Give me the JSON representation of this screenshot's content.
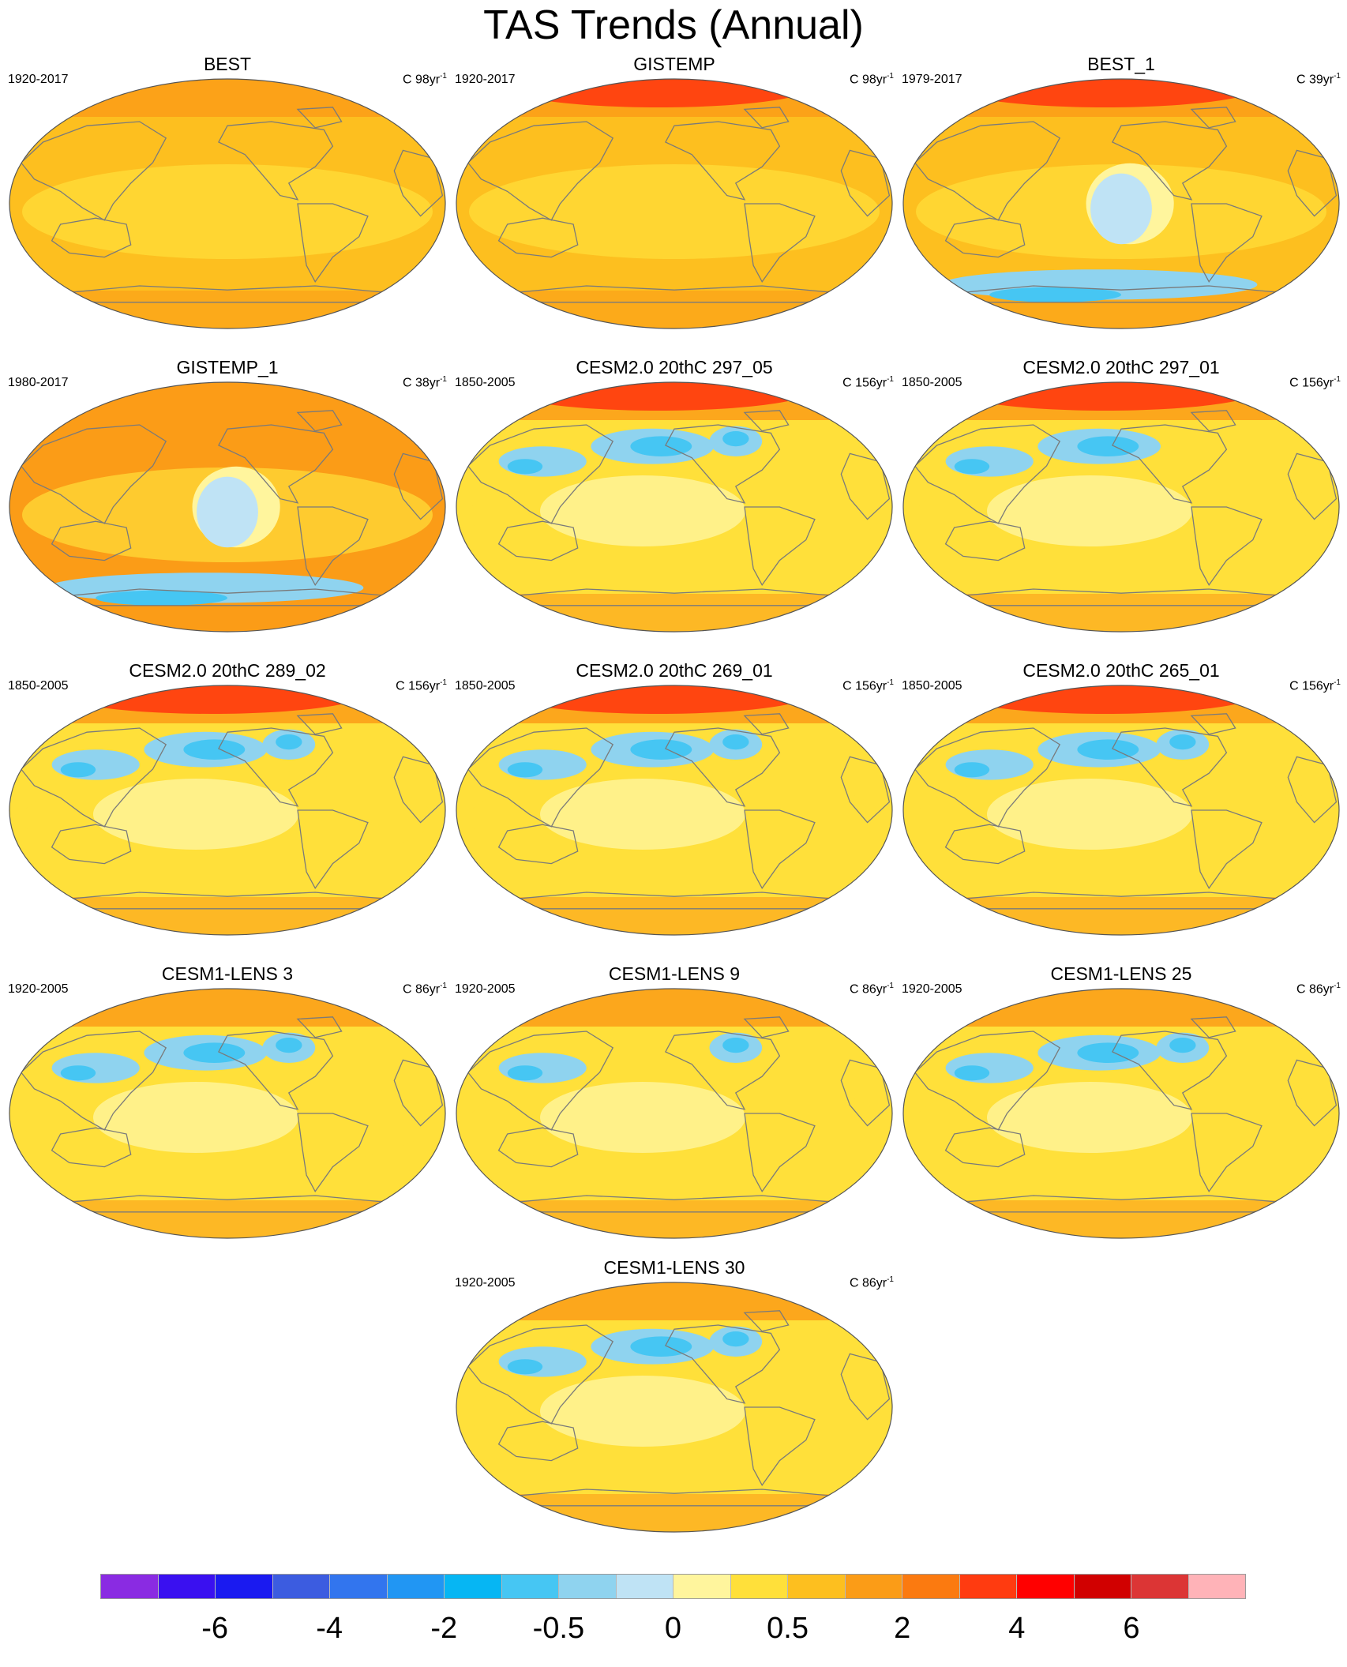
{
  "title": "TAS Trends (Annual)",
  "panels": [
    {
      "title": "BEST",
      "period": "1920-2017",
      "units": "C 98yr",
      "units_exp": "-1",
      "variant": "obs",
      "polar_red": false,
      "blue": []
    },
    {
      "title": "GISTEMP",
      "period": "1920-2017",
      "units": "C 98yr",
      "units_exp": "-1",
      "variant": "obs_gis",
      "polar_red": true,
      "blue": []
    },
    {
      "title": "BEST_1",
      "period": "1979-2017",
      "units": "C 39yr",
      "units_exp": "-1",
      "variant": "recent",
      "polar_red": true,
      "blue": [
        "pacific",
        "southern"
      ]
    },
    {
      "title": "GISTEMP_1",
      "period": "1980-2017",
      "units": "C 38yr",
      "units_exp": "-1",
      "variant": "recent_gis",
      "polar_red": false,
      "blue": [
        "pacific",
        "southern"
      ]
    },
    {
      "title": "CESM2.0 20thC 297_05",
      "period": "1850-2005",
      "units": "C 156yr",
      "units_exp": "-1",
      "variant": "cesm2",
      "polar_red": true,
      "blue": [
        "npacific",
        "asia",
        "namerica"
      ]
    },
    {
      "title": "CESM2.0 20thC 297_01",
      "period": "1850-2005",
      "units": "C 156yr",
      "units_exp": "-1",
      "variant": "cesm2",
      "polar_red": true,
      "blue": [
        "npacific",
        "asia"
      ]
    },
    {
      "title": "CESM2.0 20thC 289_02",
      "period": "1850-2005",
      "units": "C 156yr",
      "units_exp": "-1",
      "variant": "cesm2",
      "polar_red": true,
      "blue": [
        "npacific",
        "asia",
        "namerica"
      ]
    },
    {
      "title": "CESM2.0 20thC 269_01",
      "period": "1850-2005",
      "units": "C 156yr",
      "units_exp": "-1",
      "variant": "cesm2",
      "polar_red": true,
      "blue": [
        "npacific",
        "asia",
        "namerica"
      ]
    },
    {
      "title": "CESM2.0 20thC 265_01",
      "period": "1850-2005",
      "units": "C 156yr",
      "units_exp": "-1",
      "variant": "cesm2",
      "polar_red": true,
      "blue": [
        "npacific",
        "asia",
        "namerica"
      ]
    },
    {
      "title": "CESM1-LENS 3",
      "period": "1920-2005",
      "units": "C 86yr",
      "units_exp": "-1",
      "variant": "lens",
      "polar_red": false,
      "blue": [
        "npacific",
        "asia",
        "namerica"
      ]
    },
    {
      "title": "CESM1-LENS 9",
      "period": "1920-2005",
      "units": "C 86yr",
      "units_exp": "-1",
      "variant": "lens",
      "polar_red": false,
      "blue": [
        "asia",
        "namerica"
      ]
    },
    {
      "title": "CESM1-LENS 25",
      "period": "1920-2005",
      "units": "C 86yr",
      "units_exp": "-1",
      "variant": "lens",
      "polar_red": false,
      "blue": [
        "npacific",
        "asia",
        "namerica"
      ]
    },
    {
      "title": "CESM1-LENS 30",
      "period": "1920-2005",
      "units": "C 86yr",
      "units_exp": "-1",
      "variant": "lens",
      "polar_red": false,
      "blue": [
        "npacific",
        "asia",
        "namerica"
      ]
    }
  ],
  "colorbar": {
    "colors": [
      "#8a2be2",
      "#3a10f0",
      "#1a1af0",
      "#3c5ce0",
      "#3275ee",
      "#2196f3",
      "#06b6f3",
      "#46c6f3",
      "#8fd3ef",
      "#bfe3f5",
      "#fff59d",
      "#ffe03a",
      "#fdbf1f",
      "#fb9c17",
      "#fb7a10",
      "#ff3b10",
      "#ff0000",
      "#d10000",
      "#dc3535",
      "#ffb3b8"
    ],
    "labels": [
      "-6",
      "-4",
      "-2",
      "-0.5",
      "0",
      "0.5",
      "2",
      "4",
      "6"
    ],
    "label_boundaries": [
      2,
      4,
      6,
      8,
      10,
      12,
      14,
      16,
      18
    ]
  }
}
